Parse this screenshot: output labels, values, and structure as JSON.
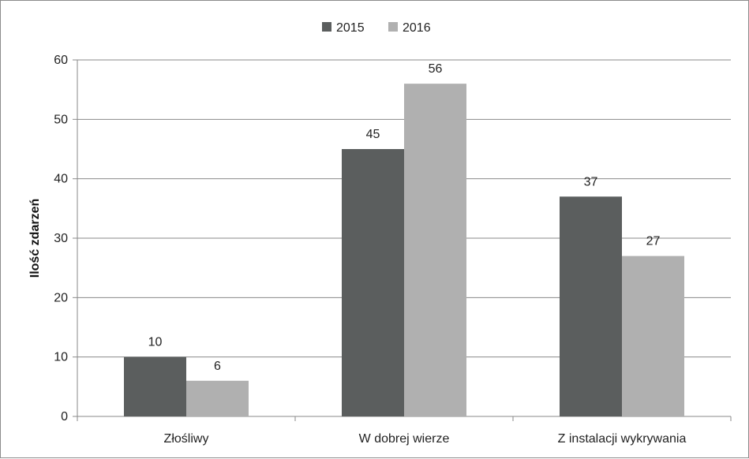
{
  "chart_data": {
    "type": "bar",
    "title": "",
    "xlabel": "",
    "ylabel": "Ilość zdarzeń",
    "categories": [
      "Złośliwy",
      "W dobrej wierze",
      "Z instalacji wykrywania"
    ],
    "series": [
      {
        "name": "2015",
        "values": [
          10,
          45,
          37
        ],
        "color": "#5b5e5e"
      },
      {
        "name": "2016",
        "values": [
          6,
          56,
          27
        ],
        "color": "#b0b0b0"
      }
    ],
    "ylim": [
      0,
      60
    ],
    "yticks": [
      0,
      10,
      20,
      30,
      40,
      50,
      60
    ],
    "grid": true,
    "legend_position": "top-center",
    "data_labels": true
  }
}
